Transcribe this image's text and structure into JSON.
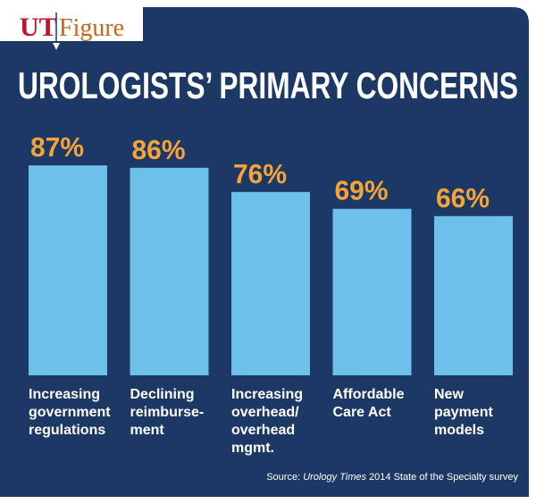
{
  "brand": {
    "short": "UT",
    "word": "Figure"
  },
  "chart_data": {
    "type": "bar",
    "title": "UROLOGISTS’ PRIMARY CONCERNS",
    "categories": [
      "Increasing\ngovernment\nregulations",
      "Declining\nreimburse-\nment",
      "Increasing\noverhead/\noverhead\nmgmt.",
      "Affordable\nCare Act",
      "New\npayment\nmodels"
    ],
    "values": [
      87,
      86,
      76,
      69,
      66
    ],
    "value_labels": [
      "87%",
      "86%",
      "76%",
      "69%",
      "66%"
    ],
    "color": "#6cc0ea",
    "label_color": "#f6a43a",
    "ylim": [
      0,
      100
    ],
    "source": {
      "prefix": "Source:",
      "publication": "Urology Times",
      "rest": "2014 State of the Specialty survey"
    }
  }
}
